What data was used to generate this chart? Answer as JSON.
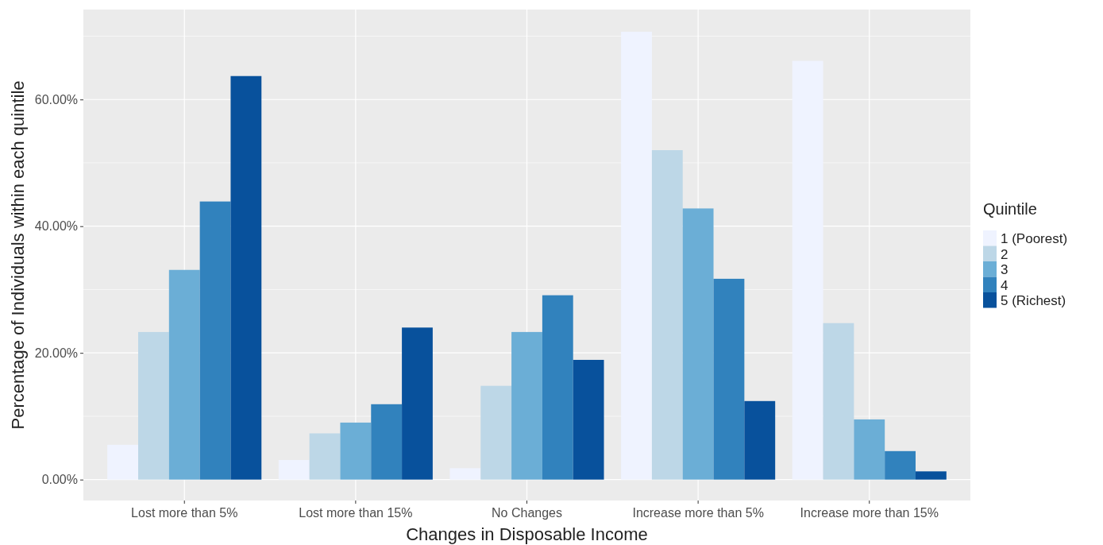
{
  "chart_data": {
    "type": "bar",
    "xlabel": "Changes in Disposable Income",
    "ylabel": "Percentage of Individuals within each quintile",
    "legend_title": "Quintile",
    "legend": "right",
    "categories": [
      "Lost more than 5%",
      "Lost more than 15%",
      "No Changes",
      "Increase more than 5%",
      "Increase more than 15%"
    ],
    "series": [
      {
        "name": "1 (Poorest)",
        "color": "#eff3ff",
        "values": [
          5.5,
          3.1,
          1.8,
          70.7,
          66.1
        ]
      },
      {
        "name": "2",
        "color": "#bdd7e7",
        "values": [
          23.3,
          7.3,
          14.8,
          52.0,
          24.7
        ]
      },
      {
        "name": "3",
        "color": "#6baed6",
        "values": [
          33.1,
          9.0,
          23.3,
          42.8,
          9.5
        ]
      },
      {
        "name": "4",
        "color": "#3182bd",
        "values": [
          43.9,
          11.9,
          29.1,
          31.7,
          4.5
        ]
      },
      {
        "name": "5 (Richest)",
        "color": "#08519c",
        "values": [
          63.7,
          24.0,
          18.9,
          12.4,
          1.3
        ]
      }
    ],
    "ylim": [
      -3.3,
      74.2
    ],
    "yticks": [
      {
        "value": 0,
        "label": "0.00%"
      },
      {
        "value": 20,
        "label": "20.00%"
      },
      {
        "value": 40,
        "label": "40.00%"
      },
      {
        "value": 60,
        "label": "60.00%"
      }
    ],
    "grid": true
  }
}
